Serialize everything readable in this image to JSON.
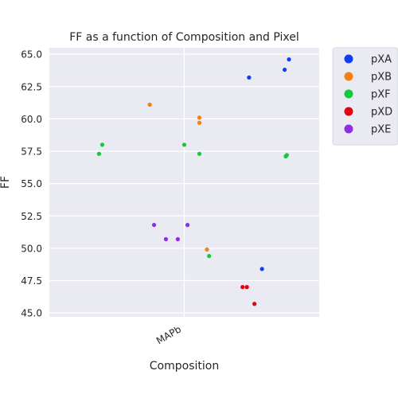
{
  "chart_data": {
    "type": "scatter",
    "title": "FF as a function of Composition and Pixel",
    "xlabel": "Composition",
    "ylabel": "FF",
    "categories": [
      "MAPb"
    ],
    "ylim": [
      44.7,
      65.5
    ],
    "yticks": [
      45.0,
      47.5,
      50.0,
      52.5,
      55.0,
      57.5,
      60.0,
      62.5,
      65.0
    ],
    "ytick_labels": [
      "45.0",
      "47.5",
      "50.0",
      "52.5",
      "55.0",
      "57.5",
      "60.0",
      "62.5",
      "65.0"
    ],
    "grid": true,
    "legend_position": "outside-top-right",
    "background": "#eaeaf2",
    "series": [
      {
        "name": "pXA",
        "color": "#0b3ef5",
        "points": [
          {
            "jitter": 0.6,
            "y": 63.2
          },
          {
            "jitter": 0.93,
            "y": 63.8
          },
          {
            "jitter": 0.97,
            "y": 64.6
          },
          {
            "jitter": 0.72,
            "y": 48.4
          }
        ]
      },
      {
        "name": "pXB",
        "color": "#f57f11",
        "points": [
          {
            "jitter": -0.32,
            "y": 61.1
          },
          {
            "jitter": 0.14,
            "y": 60.1
          },
          {
            "jitter": 0.14,
            "y": 59.7
          },
          {
            "jitter": 0.21,
            "y": 49.9
          }
        ]
      },
      {
        "name": "pXF",
        "color": "#18c741",
        "points": [
          {
            "jitter": -0.79,
            "y": 57.3
          },
          {
            "jitter": -0.76,
            "y": 58.0
          },
          {
            "jitter": 0.0,
            "y": 58.0
          },
          {
            "jitter": 0.14,
            "y": 57.3
          },
          {
            "jitter": 0.94,
            "y": 57.1
          },
          {
            "jitter": 0.95,
            "y": 57.2
          },
          {
            "jitter": 0.23,
            "y": 49.4
          }
        ]
      },
      {
        "name": "pXD",
        "color": "#e60010",
        "points": [
          {
            "jitter": 0.54,
            "y": 47.0
          },
          {
            "jitter": 0.58,
            "y": 47.0
          },
          {
            "jitter": 0.65,
            "y": 45.7
          }
        ]
      },
      {
        "name": "pXE",
        "color": "#8c2ee5",
        "points": [
          {
            "jitter": -0.28,
            "y": 51.8
          },
          {
            "jitter": 0.03,
            "y": 51.8
          },
          {
            "jitter": -0.17,
            "y": 50.7
          },
          {
            "jitter": -0.06,
            "y": 50.7
          }
        ]
      }
    ]
  }
}
